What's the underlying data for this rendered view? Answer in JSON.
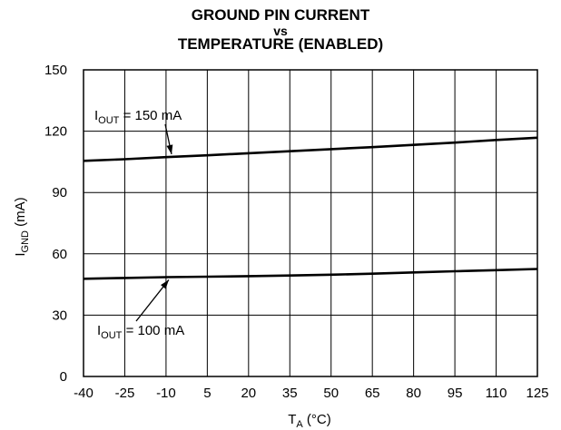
{
  "chart_data": {
    "type": "line",
    "title_lines": [
      "GROUND PIN CURRENT",
      "vs",
      "TEMPERATURE (ENABLED)"
    ],
    "xlabel": {
      "main": "T",
      "sub": "A",
      "unit": " (°C)"
    },
    "ylabel": {
      "main": "I",
      "sub": "GND",
      "unit": " (mA)"
    },
    "xlim": [
      -40,
      125
    ],
    "ylim": [
      0,
      150
    ],
    "x_ticks": [
      -40,
      -25,
      -10,
      5,
      20,
      35,
      50,
      65,
      80,
      95,
      110,
      125
    ],
    "y_ticks": [
      0,
      30,
      60,
      90,
      120,
      150
    ],
    "grid": true,
    "series": [
      {
        "name": "I_OUT = 150 mA",
        "x": [
          -40,
          -25,
          -10,
          5,
          20,
          35,
          50,
          65,
          80,
          95,
          110,
          125
        ],
        "y": [
          105.5,
          106.3,
          107.3,
          108.2,
          109.2,
          110.2,
          111.2,
          112.2,
          113.3,
          114.4,
          115.7,
          116.8
        ]
      },
      {
        "name": "I_OUT = 100 mA",
        "x": [
          -40,
          -25,
          -10,
          5,
          20,
          35,
          50,
          65,
          80,
          95,
          110,
          125
        ],
        "y": [
          47.8,
          48.2,
          48.6,
          48.8,
          49.1,
          49.4,
          49.8,
          50.3,
          50.9,
          51.5,
          52.0,
          52.6
        ]
      }
    ],
    "annotations": [
      {
        "main": "I",
        "sub": "OUT",
        "rest": " = 150 mA",
        "series": 0,
        "x": -8
      },
      {
        "main": "I",
        "sub": "OUT",
        "rest": " = 100 mA",
        "series": 1,
        "x": -9
      }
    ]
  }
}
